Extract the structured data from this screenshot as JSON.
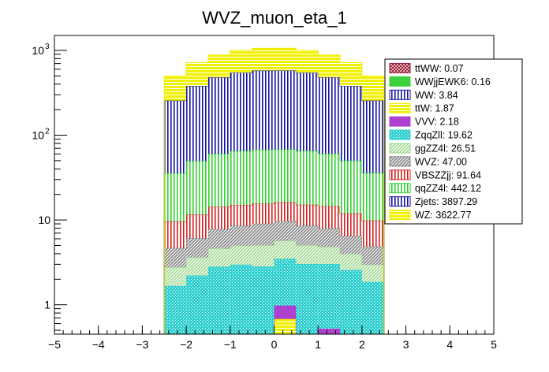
{
  "chart_data": {
    "type": "bar",
    "title": "WVZ_muon_eta_1",
    "xlabel": "",
    "ylabel": "",
    "stacked": true,
    "xlim": [
      -5,
      5
    ],
    "ylim": [
      0.45,
      1500
    ],
    "log_y": true,
    "x_ticks": [
      "−5",
      "−4",
      "−3",
      "−2",
      "−1",
      "0",
      "1",
      "2",
      "3",
      "4",
      "5"
    ],
    "y_ticks": [
      {
        "value": 1,
        "label": "1"
      },
      {
        "value": 10,
        "label": "10"
      },
      {
        "value": 100,
        "label": "10",
        "exp": "2"
      },
      {
        "value": 1000,
        "label": "10",
        "exp": "3"
      }
    ],
    "legend_position": "top-right",
    "bin_edges": [
      -2.5,
      -2.0,
      -1.5,
      -1.0,
      -0.5,
      0.0,
      0.5,
      1.0,
      1.5,
      2.0,
      2.5
    ],
    "series_stack_order_bottom_to_top": [
      "ttWW",
      "WWjjEWK6",
      "WW",
      "ttW",
      "VVV",
      "ZqqZll",
      "ggZZ4l",
      "WVZ",
      "VBSZZjj",
      "qqZZ4l",
      "Zjets",
      "WZ"
    ],
    "series": [
      {
        "name": "ttWW: 0.07",
        "key": "ttWW",
        "color": "#a0203c",
        "hatch": "cross",
        "values": [
          0.004,
          0.005,
          0.006,
          0.008,
          0.009,
          0.009,
          0.008,
          0.007,
          0.006,
          0.004
        ]
      },
      {
        "name": "WWjjEWK6: 0.16",
        "key": "WWjjEWK6",
        "color": "#3cd03c",
        "hatch": "solid",
        "values": [
          0.01,
          0.012,
          0.015,
          0.018,
          0.02,
          0.02,
          0.018,
          0.015,
          0.012,
          0.01
        ]
      },
      {
        "name": "WW: 3.84",
        "key": "WW",
        "color": "#1a1aa0",
        "hatch": "vlines",
        "values": [
          0.05,
          0.05,
          0.05,
          0.05,
          0.05,
          0.1,
          0.05,
          0.05,
          0.05,
          0.05
        ]
      },
      {
        "name": "ttW: 1.87",
        "key": "ttW",
        "color": "#f0f000",
        "hatch": "hlines",
        "values": [
          0.05,
          0.05,
          0.13,
          0.05,
          0.05,
          0.55,
          0.05,
          0.3,
          0.1,
          0.05
        ]
      },
      {
        "name": "VVV: 2.18",
        "key": "VVV",
        "color": "#b040d0",
        "hatch": "solid",
        "values": [
          0.05,
          0.1,
          0.1,
          0.25,
          0.2,
          0.3,
          0.2,
          0.15,
          0.2,
          0.05
        ]
      },
      {
        "name": "ZqqZll: 19.62",
        "key": "ZqqZll",
        "color": "#30d0d0",
        "hatch": "dots",
        "values": [
          1.5,
          2.0,
          2.5,
          2.6,
          2.5,
          2.5,
          2.7,
          2.5,
          2.2,
          1.7
        ]
      },
      {
        "name": "ggZZ4l: 26.51",
        "key": "ggZZ4l",
        "color": "#a0d890",
        "hatch": "diag",
        "values": [
          1.1,
          1.4,
          1.8,
          2.0,
          2.2,
          2.2,
          2.0,
          1.8,
          1.4,
          1.1
        ]
      },
      {
        "name": "WVZ: 47.00",
        "key": "WVZ",
        "color": "#808080",
        "hatch": "diag",
        "values": [
          1.9,
          2.5,
          3.2,
          3.6,
          4.0,
          4.0,
          3.6,
          3.2,
          2.5,
          1.9
        ]
      },
      {
        "name": "VBSZZjj: 91.64",
        "key": "VBSZZjj",
        "color": "#d02020",
        "hatch": "vlines",
        "values": [
          5.0,
          5.5,
          6.5,
          6.5,
          6.5,
          6.5,
          6.5,
          6.5,
          5.5,
          5.0
        ]
      },
      {
        "name": "qqZZ4l: 442.12",
        "key": "qqZZ4l",
        "color": "#30d030",
        "hatch": "vlines",
        "values": [
          26,
          38,
          46,
          50,
          52,
          52,
          50,
          46,
          38,
          26
        ]
      },
      {
        "name": "Zjets: 3897.29",
        "key": "Zjets",
        "color": "#1010a0",
        "hatch": "vlines",
        "values": [
          220,
          330,
          420,
          480,
          510,
          510,
          480,
          420,
          330,
          220
        ]
      },
      {
        "name": "WZ: 3622.77",
        "key": "WZ",
        "color": "#f0f000",
        "hatch": "hlines",
        "values": [
          240,
          340,
          400,
          460,
          480,
          480,
          460,
          400,
          340,
          240
        ]
      }
    ]
  }
}
